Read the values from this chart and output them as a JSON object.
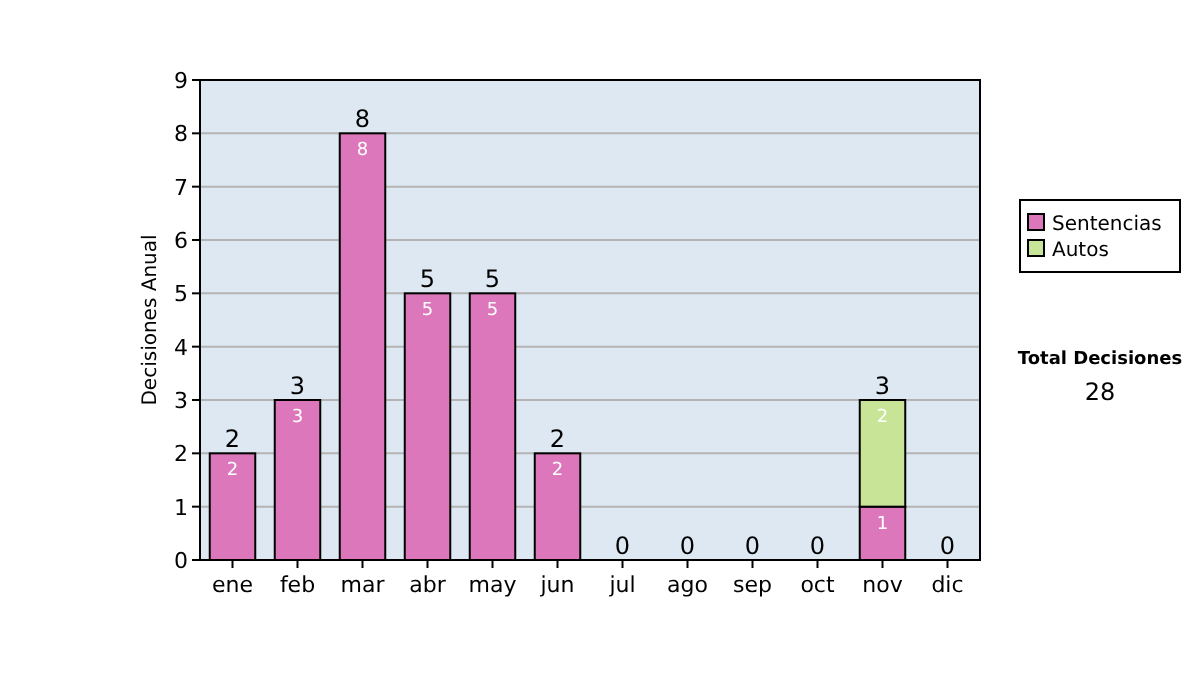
{
  "chart_data": {
    "type": "bar",
    "stacked": true,
    "ylabel": "Decisiones Anual",
    "categories": [
      "ene",
      "feb",
      "mar",
      "abr",
      "may",
      "jun",
      "jul",
      "ago",
      "sep",
      "oct",
      "nov",
      "dic"
    ],
    "series": [
      {
        "name": "Sentencias",
        "color": "#dd77bb",
        "values": [
          2,
          3,
          8,
          5,
          5,
          2,
          0,
          0,
          0,
          0,
          1,
          0
        ],
        "value_labels": [
          "2",
          "3",
          "8",
          "5",
          "5",
          "2",
          null,
          null,
          null,
          null,
          "1",
          null
        ]
      },
      {
        "name": "Autos",
        "color": "#c8e496",
        "values": [
          0,
          0,
          0,
          0,
          0,
          0,
          0,
          0,
          0,
          0,
          2,
          0
        ],
        "value_labels": [
          null,
          null,
          null,
          null,
          null,
          null,
          null,
          null,
          null,
          null,
          "2",
          null
        ]
      }
    ],
    "totals": [
      "2",
      "3",
      "8",
      "5",
      "5",
      "2",
      "0",
      "0",
      "0",
      "0",
      "3",
      "0"
    ],
    "ylim": [
      0,
      9
    ],
    "yticks": [
      0,
      1,
      2,
      3,
      4,
      5,
      6,
      7,
      8,
      9
    ],
    "grid": "y",
    "legend": "right",
    "annotations": [
      "Total Decisiones",
      "28"
    ]
  }
}
